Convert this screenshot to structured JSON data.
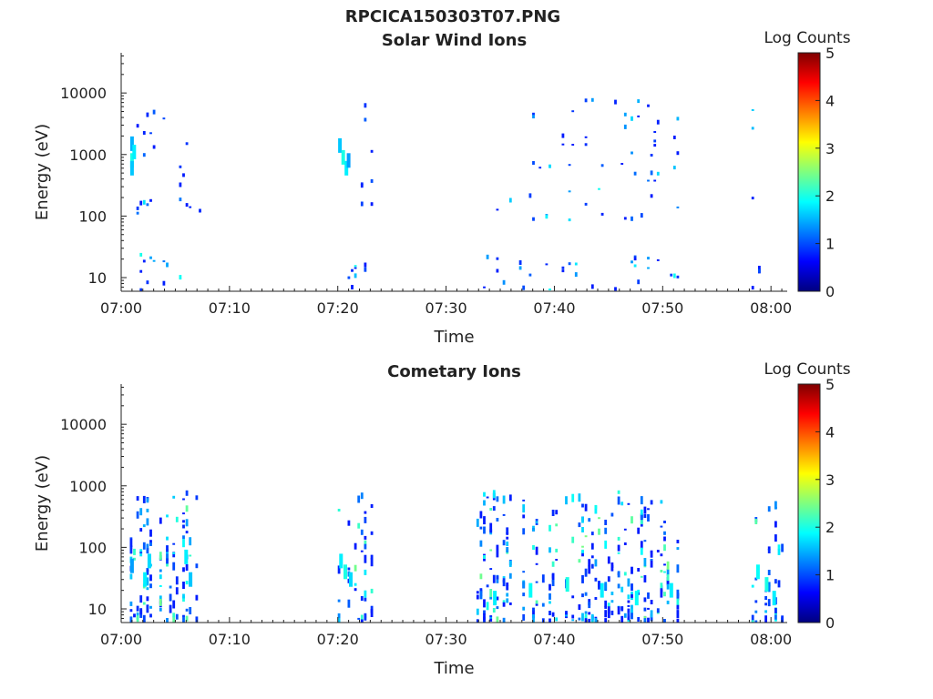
{
  "figure_title": "RPCICA150303T07.PNG",
  "palette": {
    "background": "#ffffff",
    "axis": "#222222",
    "colormap_stops": [
      "#00007f",
      "#0000ff",
      "#007fff",
      "#00ffff",
      "#7fff7f",
      "#ffff00",
      "#ff7f00",
      "#ff0000",
      "#7f0000"
    ]
  },
  "chart_data": [
    {
      "type": "heatmap",
      "title": "Solar Wind Ions",
      "xlabel": "Time",
      "ylabel": "Energy (eV)",
      "x_ticks": [
        "07:00",
        "07:10",
        "07:20",
        "07:30",
        "07:40",
        "07:50",
        "08:00"
      ],
      "y_scale": "log",
      "y_ticks": [
        "10",
        "100",
        "1000",
        "10000"
      ],
      "ylim": [
        6,
        45000
      ],
      "xlim_minutes": [
        0,
        61.5
      ],
      "colorbar": {
        "label": "Log Counts",
        "range": [
          0,
          5
        ],
        "ticks": [
          "0",
          "1",
          "2",
          "3",
          "4",
          "5"
        ]
      },
      "activity_windows_minutes": [
        [
          0.8,
          7.2
        ],
        [
          20.0,
          23.2
        ],
        [
          32.8,
          51.5
        ],
        [
          58.2,
          61.2
        ]
      ],
      "cells": [
        {
          "t": 1.0,
          "e": 1500,
          "v": 1.5
        },
        {
          "t": 1.0,
          "e": 800,
          "v": 2.0
        },
        {
          "t": 1.2,
          "e": 1100,
          "v": 1.8
        },
        {
          "t": 1.0,
          "e": 600,
          "v": 1.6
        },
        {
          "t": 20.2,
          "e": 1400,
          "v": 1.6
        },
        {
          "t": 20.5,
          "e": 900,
          "v": 2.0
        },
        {
          "t": 20.8,
          "e": 600,
          "v": 1.8
        },
        {
          "t": 21.0,
          "e": 800,
          "v": 1.4
        }
      ]
    },
    {
      "type": "heatmap",
      "title": "Cometary Ions",
      "xlabel": "Time",
      "ylabel": "Energy (eV)",
      "x_ticks": [
        "07:00",
        "07:10",
        "07:20",
        "07:30",
        "07:40",
        "07:50",
        "08:00"
      ],
      "y_scale": "log",
      "y_ticks": [
        "10",
        "100",
        "1000",
        "10000"
      ],
      "ylim": [
        6,
        45000
      ],
      "xlim_minutes": [
        0,
        61.5
      ],
      "colorbar": {
        "label": "Log Counts",
        "range": [
          0,
          5
        ],
        "ticks": [
          "0",
          "1",
          "2",
          "3",
          "4",
          "5"
        ]
      },
      "activity_windows_minutes": [
        [
          0.8,
          7.2
        ],
        [
          20.0,
          23.2
        ],
        [
          32.8,
          51.5
        ],
        [
          58.2,
          61.2
        ]
      ],
      "cells": [
        {
          "t": 1.0,
          "e": 50,
          "v": 1.4
        },
        {
          "t": 2.2,
          "e": 30,
          "v": 1.8
        },
        {
          "t": 2.6,
          "e": 60,
          "v": 1.7
        },
        {
          "t": 6.0,
          "e": 70,
          "v": 1.8
        },
        {
          "t": 6.4,
          "e": 30,
          "v": 1.6
        },
        {
          "t": 20.3,
          "e": 60,
          "v": 1.8
        },
        {
          "t": 20.7,
          "e": 40,
          "v": 2.0
        },
        {
          "t": 21.2,
          "e": 30,
          "v": 1.7
        },
        {
          "t": 34.5,
          "e": 15,
          "v": 1.8
        },
        {
          "t": 37.8,
          "e": 20,
          "v": 1.9
        },
        {
          "t": 41.2,
          "e": 25,
          "v": 2.0
        },
        {
          "t": 44.4,
          "e": 20,
          "v": 1.8
        },
        {
          "t": 47.6,
          "e": 15,
          "v": 1.9
        },
        {
          "t": 50.8,
          "e": 20,
          "v": 1.8
        },
        {
          "t": 58.8,
          "e": 40,
          "v": 1.9
        },
        {
          "t": 59.6,
          "e": 25,
          "v": 2.0
        },
        {
          "t": 60.3,
          "e": 15,
          "v": 1.8
        }
      ]
    }
  ]
}
